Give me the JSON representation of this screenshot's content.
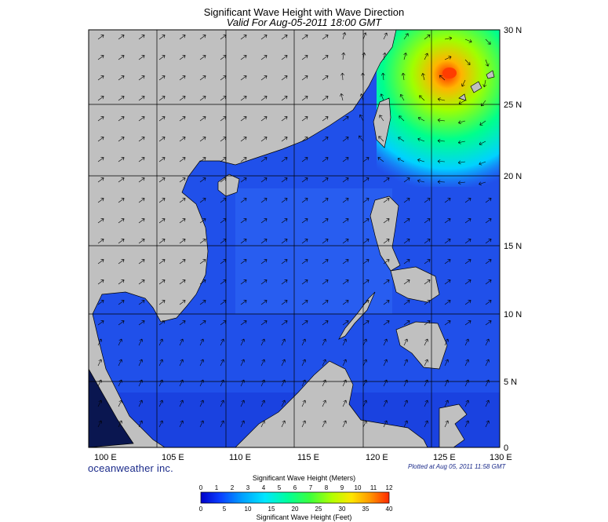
{
  "title": "Significant Wave Height with Wave Direction",
  "subtitle": "Valid For Aug-05-2011 18:00 GMT",
  "brand": "oceanweather inc.",
  "plotted": "Plotted at Aug 05, 2011 11:58 GMT",
  "lon_labels": [
    "100 E",
    "105 E",
    "110 E",
    "115 E",
    "120 E",
    "125 E",
    "130 E"
  ],
  "lat_labels": [
    "30 N",
    "25 N",
    "20 N",
    "15 N",
    "10 N",
    "5 N",
    "0"
  ],
  "colorbar": {
    "meters_title": "Significant Wave Height (Meters)",
    "feet_title": "Significant Wave Height (Feet)",
    "meters_ticks": [
      "0",
      "1",
      "2",
      "3",
      "4",
      "5",
      "6",
      "7",
      "8",
      "9",
      "10",
      "11",
      "12"
    ],
    "feet_ticks": [
      "0",
      "5",
      "10",
      "15",
      "20",
      "25",
      "30",
      "35",
      "40"
    ],
    "colors": [
      "#0000c8",
      "#0a28ff",
      "#0a64ff",
      "#00a0ff",
      "#00d2ff",
      "#00ffd2",
      "#00ff8c",
      "#3cff3c",
      "#a0ff00",
      "#e6ff00",
      "#ffd200",
      "#ff8200",
      "#ff2800"
    ]
  },
  "colors": {
    "land": "#c0c0c0",
    "sea_low": "#1e46e6",
    "sea_mid": "#2a5cf0",
    "text_brand": "#1a2a8a"
  },
  "chart_data": {
    "type": "heatmap",
    "title": "Significant Wave Height with Wave Direction",
    "subtitle": "Valid For Aug-05-2011 18:00 GMT",
    "x_range_lon": [
      100,
      130
    ],
    "y_range_lat": [
      0,
      30
    ],
    "value_range_m": [
      0,
      12
    ],
    "hotspot": {
      "lon": 126,
      "lat": 27,
      "approx_height_m": 11
    },
    "grid": true
  }
}
